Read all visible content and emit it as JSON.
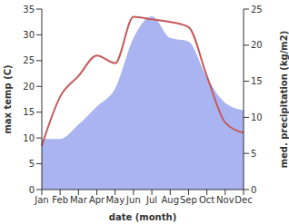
{
  "chart_data": {
    "type": "line",
    "xlabel": "date (month)",
    "ylabel": "max temp (C)",
    "y2label": "med. precipitation (kg/m2)",
    "categories": [
      "Jan",
      "Feb",
      "Mar",
      "Apr",
      "May",
      "Jun",
      "Jul",
      "Aug",
      "Sep",
      "Oct",
      "Nov",
      "Dec"
    ],
    "ylim": [
      0,
      35
    ],
    "yticks": [
      0,
      5,
      10,
      15,
      20,
      25,
      30,
      35
    ],
    "y2lim": [
      0,
      25
    ],
    "y2ticks": [
      0,
      5,
      10,
      15,
      20,
      25
    ],
    "grid": false,
    "series": [
      {
        "type": "area",
        "axis": "y2",
        "color": "#aab4f0",
        "values": [
          7,
          7,
          9,
          11.5,
          14,
          21,
          24,
          21,
          20.5,
          15.5,
          12,
          11
        ]
      },
      {
        "type": "line",
        "axis": "y",
        "color": "#c45a5a",
        "values": [
          8.5,
          18,
          22,
          26,
          24.5,
          33.5,
          33,
          32.5,
          31.5,
          22,
          13,
          11
        ]
      }
    ]
  }
}
